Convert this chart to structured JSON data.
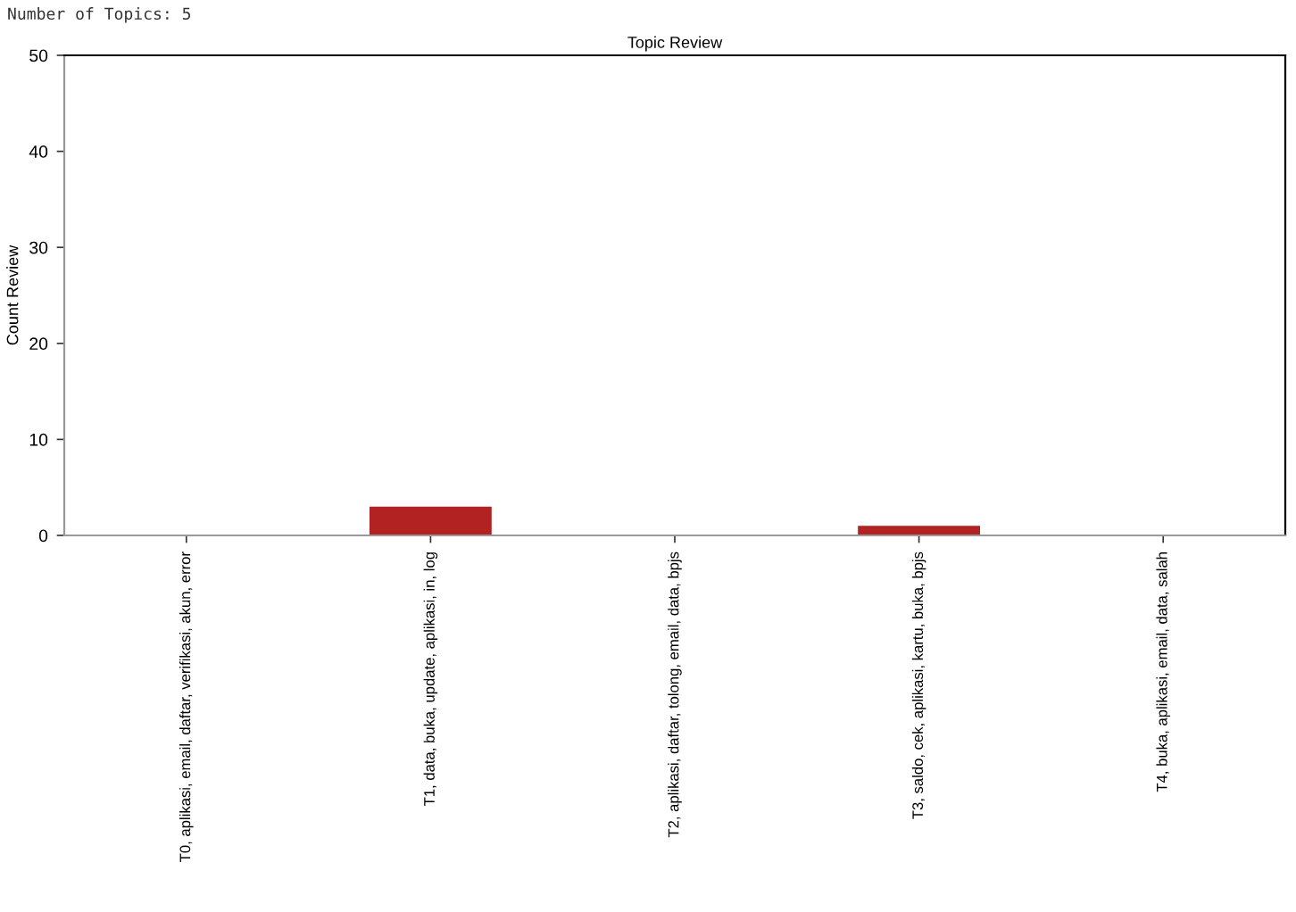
{
  "chart_data": {
    "type": "bar",
    "title": "Topic Review",
    "ylabel": "Count Review",
    "annotations": [
      "Number of Topics: 5"
    ],
    "categories": [
      "T0, aplikasi, email, daftar, verifikasi, akun, error",
      "T1, data, buka, update, aplikasi, in, log",
      "T2, aplikasi, daftar, tolong, email, data, bpjs",
      "T3, saldo, cek, aplikasi, kartu, buka, bpjs",
      "T4, buka, aplikasi, email, data, salah"
    ],
    "values": [
      0,
      3,
      0,
      1,
      0
    ],
    "color": "#b22222",
    "ylim": [
      0,
      50
    ],
    "yticks": [
      0,
      10,
      20,
      30,
      40,
      50
    ],
    "grid": false,
    "legend": false
  }
}
